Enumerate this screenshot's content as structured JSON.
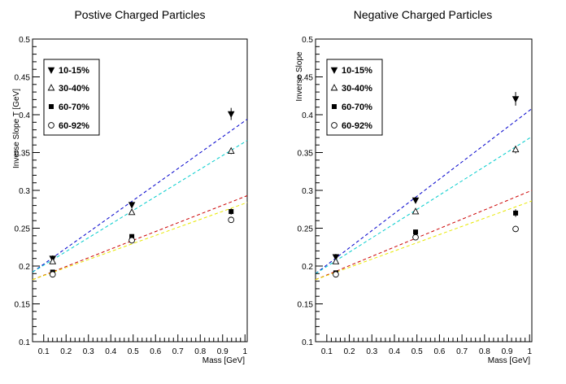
{
  "chart_data": [
    {
      "type": "scatter",
      "title": "Postive Charged Particles",
      "xlabel": "Mass [GeV]",
      "ylabel": "Inverse Slope T [GeV]",
      "xlim": [
        0.05,
        1.01
      ],
      "ylim": [
        0.1,
        0.5
      ],
      "xticks": [
        0.1,
        0.2,
        0.3,
        0.4,
        0.5,
        0.6,
        0.7,
        0.8,
        0.9,
        1
      ],
      "xtick_labels": [
        "0.1",
        "0.2",
        "0.3",
        "0.4",
        "0.5",
        "0.6",
        "0.7",
        "0.8",
        "0.9",
        "1"
      ],
      "yticks": [
        0.1,
        0.15,
        0.2,
        0.25,
        0.3,
        0.35,
        0.4,
        0.45,
        0.5
      ],
      "ytick_labels": [
        "0.1",
        "0.15",
        "0.2",
        "0.25",
        "0.3",
        "0.35",
        "0.4",
        "0.45",
        "0.5"
      ],
      "legend_position": "top-left",
      "grid": false,
      "series": [
        {
          "name": "10-15%",
          "marker": "triangle-down-filled",
          "color": "#000000",
          "fit_color": "#0000cc",
          "x": [
            0.14,
            0.494,
            0.938
          ],
          "y": [
            0.21,
            0.281,
            0.401
          ],
          "err": [
            0.004,
            0.004,
            0.008
          ],
          "fit": {
            "x": [
              0.05,
              1.01
            ],
            "y": [
              0.192,
              0.394
            ]
          }
        },
        {
          "name": "30-40%",
          "marker": "triangle-up-open",
          "color": "#000000",
          "fit_color": "#00cccc",
          "x": [
            0.14,
            0.494,
            0.938
          ],
          "y": [
            0.206,
            0.271,
            0.352
          ],
          "err": [
            0.003,
            0.003,
            0.004
          ],
          "fit": {
            "x": [
              0.05,
              1.01
            ],
            "y": [
              0.192,
              0.366
            ]
          }
        },
        {
          "name": "60-70%",
          "marker": "square-filled",
          "color": "#000000",
          "fit_color": "#cc0000",
          "x": [
            0.14,
            0.494,
            0.938
          ],
          "y": [
            0.192,
            0.239,
            0.272
          ],
          "err": [
            0.003,
            0.003,
            0.004
          ],
          "fit": {
            "x": [
              0.05,
              1.01
            ],
            "y": [
              0.182,
              0.293
            ]
          }
        },
        {
          "name": "60-92%",
          "marker": "circle-open",
          "color": "#000000",
          "fit_color": "#e8e800",
          "x": [
            0.14,
            0.494,
            0.938
          ],
          "y": [
            0.189,
            0.234,
            0.261
          ],
          "err": [
            0.003,
            0.003,
            0.004
          ],
          "fit": {
            "x": [
              0.05,
              1.01
            ],
            "y": [
              0.182,
              0.284
            ]
          }
        }
      ]
    },
    {
      "type": "scatter",
      "title": "Negative Charged Particles",
      "xlabel": "Mass [GeV]",
      "ylabel": "Inverse Slope",
      "xlim": [
        0.05,
        1.01
      ],
      "ylim": [
        0.1,
        0.5
      ],
      "xticks": [
        0.1,
        0.2,
        0.3,
        0.4,
        0.5,
        0.6,
        0.7,
        0.8,
        0.9,
        1
      ],
      "xtick_labels": [
        "0.1",
        "0.2",
        "0.3",
        "0.4",
        "0.5",
        "0.6",
        "0.7",
        "0.8",
        "0.9",
        "1"
      ],
      "yticks": [
        0.1,
        0.15,
        0.2,
        0.25,
        0.3,
        0.35,
        0.4,
        0.45,
        0.5
      ],
      "ytick_labels": [
        "0.1",
        "0.15",
        "0.2",
        "0.25",
        "0.3",
        "0.35",
        "0.4",
        "0.45",
        "0.5"
      ],
      "legend_position": "top-left",
      "grid": false,
      "series": [
        {
          "name": "10-15%",
          "marker": "triangle-down-filled",
          "color": "#000000",
          "fit_color": "#0000cc",
          "x": [
            0.14,
            0.494,
            0.938
          ],
          "y": [
            0.212,
            0.287,
            0.421
          ],
          "err": [
            0.004,
            0.004,
            0.009
          ],
          "fit": {
            "x": [
              0.05,
              1.01
            ],
            "y": [
              0.19,
              0.408
            ]
          }
        },
        {
          "name": "30-40%",
          "marker": "triangle-up-open",
          "color": "#000000",
          "fit_color": "#00cccc",
          "x": [
            0.14,
            0.494,
            0.938
          ],
          "y": [
            0.206,
            0.272,
            0.354
          ],
          "err": [
            0.003,
            0.003,
            0.005
          ],
          "fit": {
            "x": [
              0.05,
              1.01
            ],
            "y": [
              0.19,
              0.371
            ]
          }
        },
        {
          "name": "60-70%",
          "marker": "square-filled",
          "color": "#000000",
          "fit_color": "#cc0000",
          "x": [
            0.14,
            0.494,
            0.938
          ],
          "y": [
            0.191,
            0.245,
            0.27
          ],
          "err": [
            0.003,
            0.003,
            0.005
          ],
          "fit": {
            "x": [
              0.05,
              1.01
            ],
            "y": [
              0.182,
              0.3
            ]
          }
        },
        {
          "name": "60-92%",
          "marker": "circle-open",
          "color": "#000000",
          "fit_color": "#e8e800",
          "x": [
            0.14,
            0.494,
            0.938
          ],
          "y": [
            0.189,
            0.238,
            0.249
          ],
          "err": [
            0.003,
            0.003,
            0.004
          ],
          "fit": {
            "x": [
              0.05,
              1.01
            ],
            "y": [
              0.182,
              0.286
            ]
          }
        }
      ]
    }
  ]
}
